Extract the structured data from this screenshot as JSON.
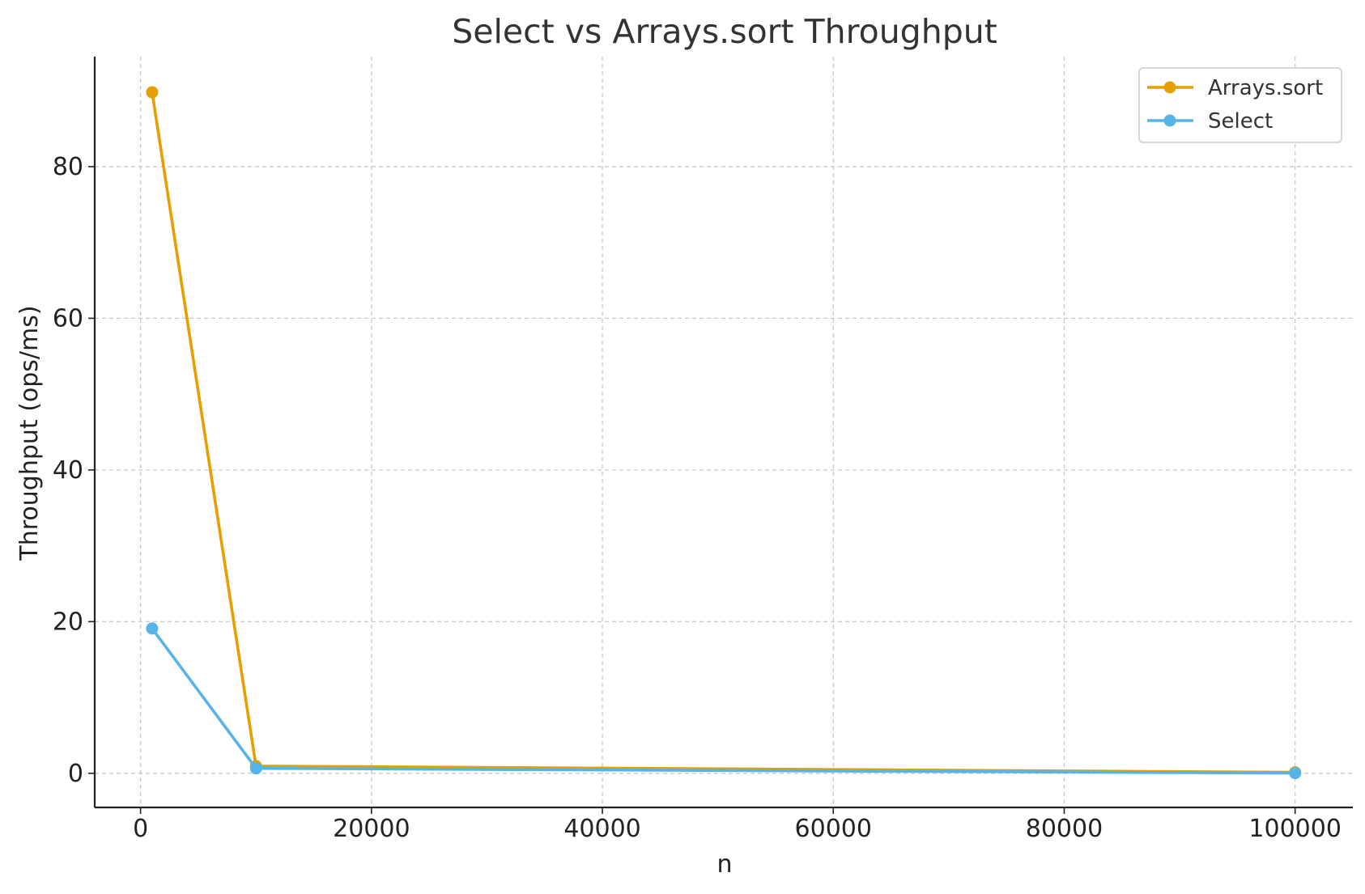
{
  "chart_data": {
    "type": "line",
    "title": "Select vs Arrays.sort Throughput",
    "xlabel": "n",
    "ylabel": "Throughput (ops/ms)",
    "xlim": [
      -3970,
      105000
    ],
    "ylim": [
      -4.5,
      94.5
    ],
    "x": [
      1000,
      10000,
      100000
    ],
    "x_ticks": [
      0,
      20000,
      40000,
      60000,
      80000,
      100000
    ],
    "y_ticks": [
      0,
      20,
      40,
      60,
      80
    ],
    "grid": true,
    "legend_position": "top-right",
    "series": [
      {
        "name": "Arrays.sort",
        "color": "#E69F00",
        "values": [
          89.8,
          0.95,
          0.13
        ]
      },
      {
        "name": "Select",
        "color": "#56B4E9",
        "values": [
          19.1,
          0.65,
          0.02
        ]
      }
    ]
  }
}
